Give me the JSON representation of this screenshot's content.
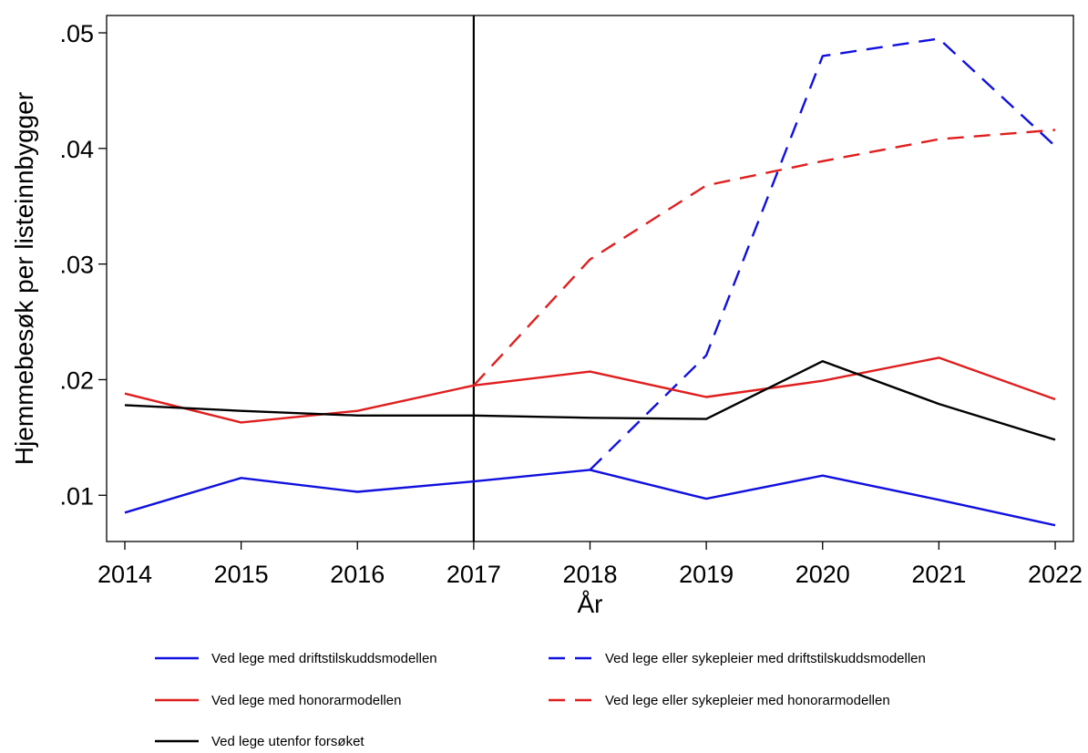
{
  "chart_data": {
    "type": "line",
    "title": "",
    "xlabel": "År",
    "ylabel": "Hjemmebesøk per listeinnbygger",
    "x": [
      2014,
      2015,
      2016,
      2017,
      2018,
      2019,
      2020,
      2021,
      2022
    ],
    "x_tick_labels": [
      "2014",
      "2015",
      "2016",
      "2017",
      "2018",
      "2019",
      "2020",
      "2021",
      "2022"
    ],
    "xlim": [
      2014,
      2022
    ],
    "y_ticks": [
      0.01,
      0.02,
      0.03,
      0.04,
      0.05
    ],
    "y_tick_labels": [
      ".01",
      ".02",
      ".03",
      ".04",
      ".05"
    ],
    "ylim": [
      0.006,
      0.0515
    ],
    "grid": false,
    "legend_position": "bottom",
    "reference_line": {
      "axis": "x",
      "value": 2017,
      "color": "#000000"
    },
    "series": [
      {
        "name": "Ved lege med driftstilskuddsmodellen",
        "color": "#1010e0",
        "dash": "solid",
        "values": [
          0.0085,
          0.0115,
          0.0103,
          0.0112,
          0.0122,
          0.0097,
          0.0117,
          0.0096,
          0.0074
        ]
      },
      {
        "name": "Ved lege eller sykepleier med driftstilskuddsmodellen",
        "color": "#1010e0",
        "dash": "dashed",
        "values": [
          null,
          null,
          null,
          null,
          0.0122,
          0.0221,
          0.048,
          0.0495,
          0.0402
        ]
      },
      {
        "name": "Ved lege med honorarmodellen",
        "color": "#e01e1e",
        "dash": "solid",
        "values": [
          0.0188,
          0.0163,
          0.0173,
          0.0195,
          0.0207,
          0.0185,
          0.0199,
          0.0219,
          0.0183
        ]
      },
      {
        "name": "Ved lege eller sykepleier med honorarmodellen",
        "color": "#e01e1e",
        "dash": "dashed",
        "values": [
          null,
          null,
          null,
          0.0195,
          0.0304,
          0.0368,
          0.0389,
          0.0408,
          0.0416
        ]
      },
      {
        "name": "Ved lege utenfor forsøket",
        "color": "#000000",
        "dash": "solid",
        "values": [
          0.0178,
          0.0173,
          0.0169,
          0.0169,
          0.0167,
          0.0166,
          0.0216,
          0.0179,
          0.0148
        ]
      }
    ]
  }
}
